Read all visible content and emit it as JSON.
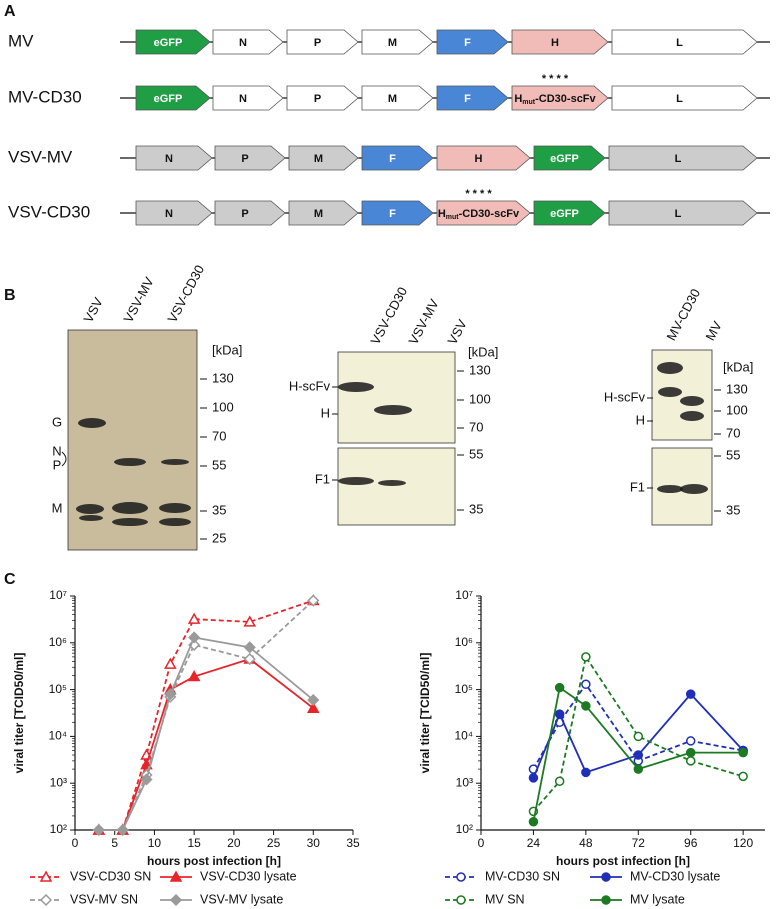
{
  "panel_labels": [
    "A",
    "B",
    "C"
  ],
  "constructs": [
    {
      "name": "MV",
      "genes": [
        {
          "label": "eGFP",
          "color": "#1f9e46",
          "text_color": "#ffffff"
        },
        {
          "label": "N",
          "color": "#ffffff",
          "text_color": "#111111"
        },
        {
          "label": "P",
          "color": "#ffffff",
          "text_color": "#111111"
        },
        {
          "label": "M",
          "color": "#ffffff",
          "text_color": "#111111"
        },
        {
          "label": "F",
          "color": "#4a86d6",
          "text_color": "#ffffff"
        },
        {
          "label": "H",
          "color": "#f1bcb8",
          "text_color": "#111111"
        },
        {
          "label": "L",
          "color": "#ffffff",
          "text_color": "#111111"
        }
      ]
    },
    {
      "name": "MV-CD30",
      "genes": [
        {
          "label": "eGFP",
          "color": "#1f9e46",
          "text_color": "#ffffff"
        },
        {
          "label": "N",
          "color": "#ffffff",
          "text_color": "#111111"
        },
        {
          "label": "P",
          "color": "#ffffff",
          "text_color": "#111111"
        },
        {
          "label": "M",
          "color": "#ffffff",
          "text_color": "#111111"
        },
        {
          "label": "F",
          "color": "#4a86d6",
          "text_color": "#ffffff"
        },
        {
          "label": "H",
          "subscript": "mut",
          "suffix": "-CD30-scFv",
          "mutations": "*  * * *",
          "color": "#f1bcb8",
          "text_color": "#111111"
        },
        {
          "label": "L",
          "color": "#ffffff",
          "text_color": "#111111"
        }
      ]
    },
    {
      "name": "VSV-MV",
      "genes": [
        {
          "label": "N",
          "color": "#cccccc",
          "text_color": "#111111"
        },
        {
          "label": "P",
          "color": "#cccccc",
          "text_color": "#111111"
        },
        {
          "label": "M",
          "color": "#cccccc",
          "text_color": "#111111"
        },
        {
          "label": "F",
          "color": "#4a86d6",
          "text_color": "#ffffff"
        },
        {
          "label": "H",
          "color": "#f1bcb8",
          "text_color": "#111111"
        },
        {
          "label": "eGFP",
          "color": "#1f9e46",
          "text_color": "#ffffff"
        },
        {
          "label": "L",
          "color": "#cccccc",
          "text_color": "#111111"
        }
      ]
    },
    {
      "name": "VSV-CD30",
      "genes": [
        {
          "label": "N",
          "color": "#cccccc",
          "text_color": "#111111"
        },
        {
          "label": "P",
          "color": "#cccccc",
          "text_color": "#111111"
        },
        {
          "label": "M",
          "color": "#cccccc",
          "text_color": "#111111"
        },
        {
          "label": "F",
          "color": "#4a86d6",
          "text_color": "#ffffff"
        },
        {
          "label": "H",
          "subscript": "mut",
          "suffix": "-CD30-scFv",
          "mutations": "*  * * *",
          "color": "#f1bcb8",
          "text_color": "#111111"
        },
        {
          "label": "eGFP",
          "color": "#1f9e46",
          "text_color": "#ffffff"
        },
        {
          "label": "L",
          "color": "#cccccc",
          "text_color": "#111111"
        }
      ]
    }
  ],
  "blots": [
    {
      "lanes": [
        "VSV",
        "VSV-MV",
        "VSV-CD30"
      ],
      "unit": "[kDa]",
      "markers": [
        130,
        100,
        70,
        55,
        35,
        25
      ],
      "bands": [
        "G",
        "N",
        "P",
        "M"
      ]
    },
    {
      "lanes": [
        "VSV-CD30",
        "VSV-MV",
        "VSV"
      ],
      "unit": "[kDa]",
      "markers": [
        130,
        100,
        70,
        55,
        35
      ],
      "bands": [
        "H-scFv",
        "H",
        "F1"
      ]
    },
    {
      "lanes": [
        "MV-CD30",
        "MV"
      ],
      "unit": "[kDa]",
      "markers": [
        130,
        100,
        70,
        55,
        35
      ],
      "bands": [
        "H-scFv",
        "H",
        "F1"
      ]
    }
  ],
  "chart_data": [
    {
      "type": "line",
      "x_label": "hours post infection [h]",
      "y_label": "viral titer [TCID50/ml]",
      "x": [
        3,
        6,
        9,
        12,
        15,
        22,
        30
      ],
      "xlim": [
        0,
        35
      ],
      "xticks": [
        0,
        5,
        10,
        15,
        20,
        25,
        30,
        35
      ],
      "ylim": [
        100,
        10000000
      ],
      "log_y": true,
      "legend": "bottom",
      "yticks": [
        {
          "value": 100,
          "label": "10²"
        },
        {
          "value": 1000,
          "label": "10³"
        },
        {
          "value": 10000,
          "label": "10⁴"
        },
        {
          "value": 100000,
          "label": "10⁵"
        },
        {
          "value": 1000000,
          "label": "10⁶"
        },
        {
          "value": 10000000,
          "label": "10⁷"
        }
      ],
      "series": [
        {
          "name": "VSV-CD30 SN",
          "color": "#e8242b",
          "dashed": true,
          "marker": "triangle",
          "filled": false,
          "values": [
            100,
            100,
            4000,
            350000,
            3200000,
            2800000,
            8000000
          ]
        },
        {
          "name": "VSV-CD30 lysate",
          "color": "#e8242b",
          "dashed": false,
          "marker": "triangle",
          "filled": true,
          "values": [
            100,
            100,
            2500,
            100000,
            190000,
            450000,
            40000
          ]
        },
        {
          "name": "VSV-MV SN",
          "color": "#9a9a9a",
          "dashed": true,
          "marker": "diamond",
          "filled": false,
          "values": [
            100,
            100,
            1500,
            70000,
            900000,
            450000,
            8000000
          ]
        },
        {
          "name": "VSV-MV lysate",
          "color": "#9a9a9a",
          "dashed": false,
          "marker": "diamond",
          "filled": true,
          "values": [
            100,
            100,
            1200,
            80000,
            1300000,
            800000,
            60000
          ]
        }
      ]
    },
    {
      "type": "line",
      "x_label": "hours post infection [h]",
      "y_label": "viral titer [TCID50/ml]",
      "x": [
        24,
        36,
        48,
        72,
        96,
        120
      ],
      "xlim": [
        0,
        130
      ],
      "xticks": [
        0,
        24,
        48,
        72,
        96,
        120
      ],
      "ylim": [
        100,
        10000000
      ],
      "log_y": true,
      "legend": "bottom",
      "yticks": [
        {
          "value": 100,
          "label": "10²"
        },
        {
          "value": 1000,
          "label": "10³"
        },
        {
          "value": 10000,
          "label": "10⁴"
        },
        {
          "value": 100000,
          "label": "10⁵"
        },
        {
          "value": 1000000,
          "label": "10⁶"
        },
        {
          "value": 10000000,
          "label": "10⁷"
        }
      ],
      "series": [
        {
          "name": "MV-CD30 SN",
          "color": "#1f2fb8",
          "dashed": true,
          "marker": "circle",
          "filled": false,
          "values": [
            2000,
            20000,
            130000,
            3000,
            8000,
            5000
          ]
        },
        {
          "name": "MV-CD30 lysate",
          "color": "#1f2fb8",
          "dashed": false,
          "marker": "circle",
          "filled": true,
          "values": [
            1300,
            30000,
            1700,
            4000,
            80000,
            5000
          ]
        },
        {
          "name": "MV SN",
          "color": "#1c7a22",
          "dashed": true,
          "marker": "circle",
          "filled": false,
          "values": [
            250,
            1100,
            500000,
            10000,
            3000,
            1400
          ]
        },
        {
          "name": "MV lysate",
          "color": "#1c7a22",
          "dashed": false,
          "marker": "circle",
          "filled": true,
          "values": [
            150,
            110000,
            45000,
            2000,
            4500,
            4500
          ]
        }
      ]
    }
  ]
}
